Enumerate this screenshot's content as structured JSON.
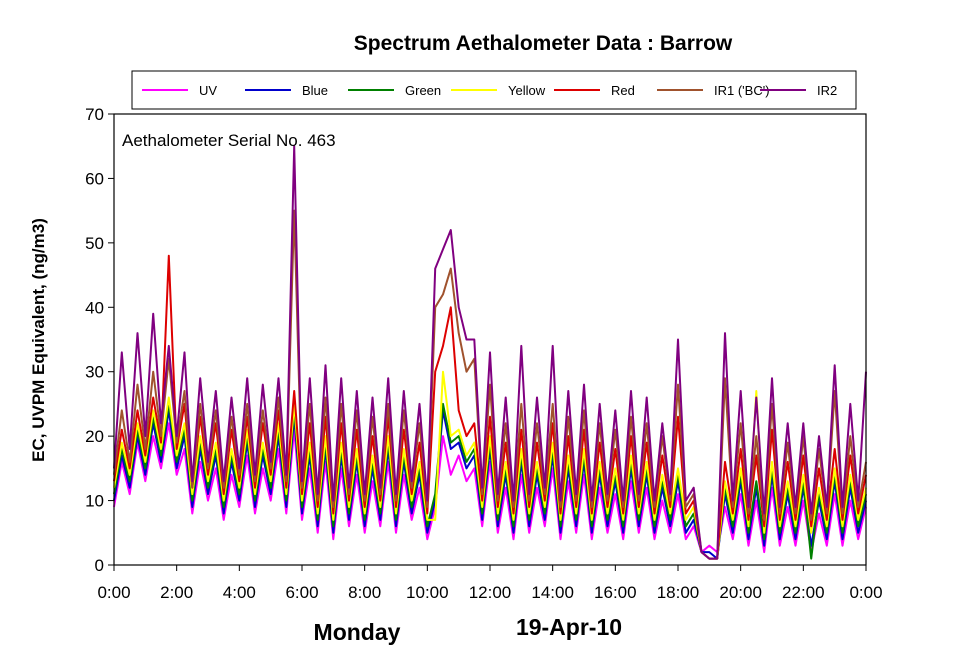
{
  "chart_data": {
    "type": "line",
    "title": "Spectrum Aethalometer Data  :  Barrow",
    "ylabel": "EC, UVPM Equivalent, (ng/m3)",
    "annotation": "Aethalometer  Serial No. 463",
    "day_label": "Monday",
    "date_label": "19-Apr-10",
    "ylim": [
      0,
      70
    ],
    "xlim_hours": [
      0,
      24
    ],
    "y_ticks": [
      "0",
      "10",
      "20",
      "30",
      "40",
      "50",
      "60",
      "70"
    ],
    "x_ticks": [
      "0:00",
      "2:00",
      "4:00",
      "6:00",
      "8:00",
      "10:00",
      "12:00",
      "14:00",
      "16:00",
      "18:00",
      "20:00",
      "22:00",
      "0:00"
    ],
    "grid": false,
    "legend_position": "top",
    "x": [
      0.0,
      0.25,
      0.5,
      0.75,
      1.0,
      1.25,
      1.5,
      1.75,
      2.0,
      2.25,
      2.5,
      2.75,
      3.0,
      3.25,
      3.5,
      3.75,
      4.0,
      4.25,
      4.5,
      4.75,
      5.0,
      5.25,
      5.5,
      5.75,
      6.0,
      6.25,
      6.5,
      6.75,
      7.0,
      7.25,
      7.5,
      7.75,
      8.0,
      8.25,
      8.5,
      8.75,
      9.0,
      9.25,
      9.5,
      9.75,
      10.0,
      10.25,
      10.5,
      10.75,
      11.0,
      11.25,
      11.5,
      11.75,
      12.0,
      12.25,
      12.5,
      12.75,
      13.0,
      13.25,
      13.5,
      13.75,
      14.0,
      14.25,
      14.5,
      14.75,
      15.0,
      15.25,
      15.5,
      15.75,
      16.0,
      16.25,
      16.5,
      16.75,
      17.0,
      17.25,
      17.5,
      17.75,
      18.0,
      18.25,
      18.5,
      18.75,
      19.0,
      19.25,
      19.5,
      19.75,
      20.0,
      20.25,
      20.5,
      20.75,
      21.0,
      21.25,
      21.5,
      21.75,
      22.0,
      22.25,
      22.5,
      22.75,
      23.0,
      23.25,
      23.5,
      23.75,
      24.0
    ],
    "series": [
      {
        "name": "UV",
        "color": "#ff00ff",
        "values": [
          9,
          16,
          11,
          19,
          13,
          20,
          15,
          22,
          14,
          18,
          8,
          16,
          10,
          15,
          7,
          14,
          9,
          17,
          8,
          15,
          10,
          18,
          8,
          21,
          7,
          15,
          5,
          16,
          4,
          15,
          6,
          14,
          5,
          13,
          6,
          16,
          5,
          14,
          7,
          12,
          4,
          9,
          20,
          14,
          17,
          13,
          15,
          6,
          16,
          5,
          12,
          4,
          14,
          5,
          12,
          6,
          15,
          4,
          13,
          5,
          14,
          4,
          12,
          5,
          11,
          4,
          13,
          5,
          12,
          4,
          10,
          5,
          11,
          4,
          6,
          2,
          3,
          2,
          9,
          4,
          11,
          3,
          10,
          2,
          12,
          3,
          9,
          3,
          10,
          2,
          8,
          3,
          11,
          3,
          10,
          4,
          9
        ]
      },
      {
        "name": "Blue",
        "color": "#0000cc",
        "values": [
          10,
          17,
          12,
          20,
          14,
          22,
          16,
          24,
          15,
          20,
          9,
          18,
          11,
          17,
          8,
          16,
          10,
          19,
          9,
          17,
          11,
          20,
          9,
          23,
          8,
          17,
          6,
          18,
          5,
          17,
          7,
          16,
          6,
          15,
          7,
          18,
          6,
          16,
          8,
          14,
          5,
          10,
          24,
          18,
          19,
          15,
          17,
          7,
          18,
          6,
          14,
          5,
          16,
          6,
          14,
          7,
          17,
          5,
          15,
          6,
          16,
          5,
          14,
          6,
          13,
          5,
          15,
          6,
          14,
          5,
          12,
          6,
          13,
          5,
          7,
          2,
          2,
          1,
          11,
          5,
          13,
          4,
          12,
          3,
          14,
          4,
          11,
          4,
          12,
          3,
          10,
          4,
          13,
          4,
          12,
          5,
          10
        ]
      },
      {
        "name": "Green",
        "color": "#008000",
        "values": [
          11,
          18,
          13,
          21,
          15,
          23,
          17,
          25,
          16,
          21,
          10,
          19,
          12,
          18,
          9,
          17,
          11,
          20,
          10,
          18,
          12,
          21,
          10,
          24,
          9,
          18,
          7,
          19,
          6,
          18,
          8,
          17,
          7,
          16,
          8,
          19,
          7,
          17,
          9,
          15,
          6,
          11,
          25,
          19,
          20,
          16,
          18,
          8,
          19,
          7,
          15,
          6,
          17,
          7,
          15,
          8,
          18,
          6,
          16,
          7,
          17,
          6,
          15,
          7,
          14,
          6,
          16,
          7,
          15,
          6,
          13,
          7,
          14,
          6,
          8,
          2,
          1,
          1,
          12,
          6,
          14,
          5,
          13,
          4,
          15,
          5,
          12,
          5,
          13,
          1,
          11,
          5,
          14,
          5,
          13,
          6,
          11
        ]
      },
      {
        "name": "Yellow",
        "color": "#ffff00",
        "values": [
          12,
          19,
          14,
          22,
          16,
          24,
          18,
          26,
          17,
          22,
          11,
          20,
          13,
          19,
          10,
          18,
          12,
          21,
          11,
          19,
          13,
          22,
          11,
          25,
          10,
          19,
          8,
          20,
          7,
          19,
          9,
          18,
          8,
          17,
          9,
          20,
          8,
          18,
          10,
          16,
          7,
          7,
          30,
          20,
          21,
          17,
          19,
          9,
          20,
          8,
          16,
          7,
          18,
          8,
          16,
          9,
          19,
          7,
          17,
          8,
          18,
          7,
          16,
          8,
          15,
          7,
          17,
          8,
          16,
          7,
          14,
          8,
          15,
          7,
          9,
          2,
          1,
          1,
          13,
          7,
          15,
          6,
          27,
          5,
          16,
          6,
          13,
          6,
          14,
          5,
          12,
          6,
          15,
          6,
          14,
          7,
          12
        ]
      },
      {
        "name": "Red",
        "color": "#dd0000",
        "values": [
          13,
          21,
          15,
          24,
          17,
          26,
          19,
          48,
          18,
          25,
          12,
          23,
          14,
          22,
          11,
          21,
          13,
          23,
          12,
          22,
          14,
          24,
          12,
          27,
          11,
          22,
          9,
          23,
          8,
          22,
          10,
          21,
          9,
          20,
          10,
          23,
          9,
          21,
          11,
          19,
          8,
          30,
          34,
          40,
          24,
          20,
          22,
          10,
          23,
          9,
          19,
          8,
          21,
          9,
          19,
          10,
          22,
          8,
          20,
          9,
          21,
          8,
          19,
          9,
          18,
          8,
          20,
          9,
          19,
          8,
          17,
          9,
          23,
          8,
          10,
          2,
          1,
          1,
          16,
          8,
          18,
          7,
          17,
          6,
          21,
          7,
          16,
          7,
          17,
          6,
          15,
          7,
          18,
          7,
          17,
          8,
          14
        ]
      },
      {
        "name": "IR1 ('BC')",
        "color": "#a0522d",
        "values": [
          14,
          24,
          16,
          28,
          18,
          30,
          20,
          32,
          19,
          27,
          12,
          25,
          15,
          24,
          12,
          23,
          14,
          25,
          13,
          24,
          15,
          26,
          13,
          55,
          12,
          25,
          10,
          26,
          9,
          25,
          11,
          24,
          10,
          23,
          11,
          25,
          10,
          24,
          12,
          22,
          9,
          40,
          42,
          46,
          36,
          30,
          32,
          11,
          28,
          10,
          22,
          9,
          25,
          10,
          22,
          11,
          25,
          9,
          23,
          10,
          24,
          9,
          22,
          10,
          21,
          9,
          23,
          10,
          22,
          9,
          20,
          10,
          28,
          9,
          11,
          2,
          1,
          1,
          29,
          9,
          22,
          8,
          20,
          7,
          25,
          8,
          19,
          8,
          20,
          7,
          18,
          8,
          27,
          8,
          20,
          9,
          16
        ]
      },
      {
        "name": "IR2",
        "color": "#800080",
        "values": [
          15,
          33,
          18,
          36,
          20,
          39,
          22,
          34,
          20,
          33,
          13,
          29,
          16,
          27,
          13,
          26,
          15,
          29,
          14,
          28,
          16,
          29,
          14,
          65,
          13,
          29,
          11,
          31,
          10,
          29,
          12,
          27,
          11,
          26,
          12,
          29,
          11,
          27,
          13,
          25,
          10,
          46,
          49,
          52,
          40,
          35,
          35,
          12,
          33,
          11,
          26,
          10,
          34,
          11,
          26,
          12,
          34,
          10,
          27,
          11,
          28,
          10,
          25,
          11,
          24,
          10,
          27,
          11,
          26,
          10,
          22,
          11,
          35,
          10,
          12,
          2,
          1,
          1,
          36,
          10,
          27,
          9,
          26,
          8,
          29,
          9,
          22,
          9,
          22,
          8,
          20,
          9,
          31,
          9,
          25,
          10,
          30
        ]
      }
    ]
  }
}
